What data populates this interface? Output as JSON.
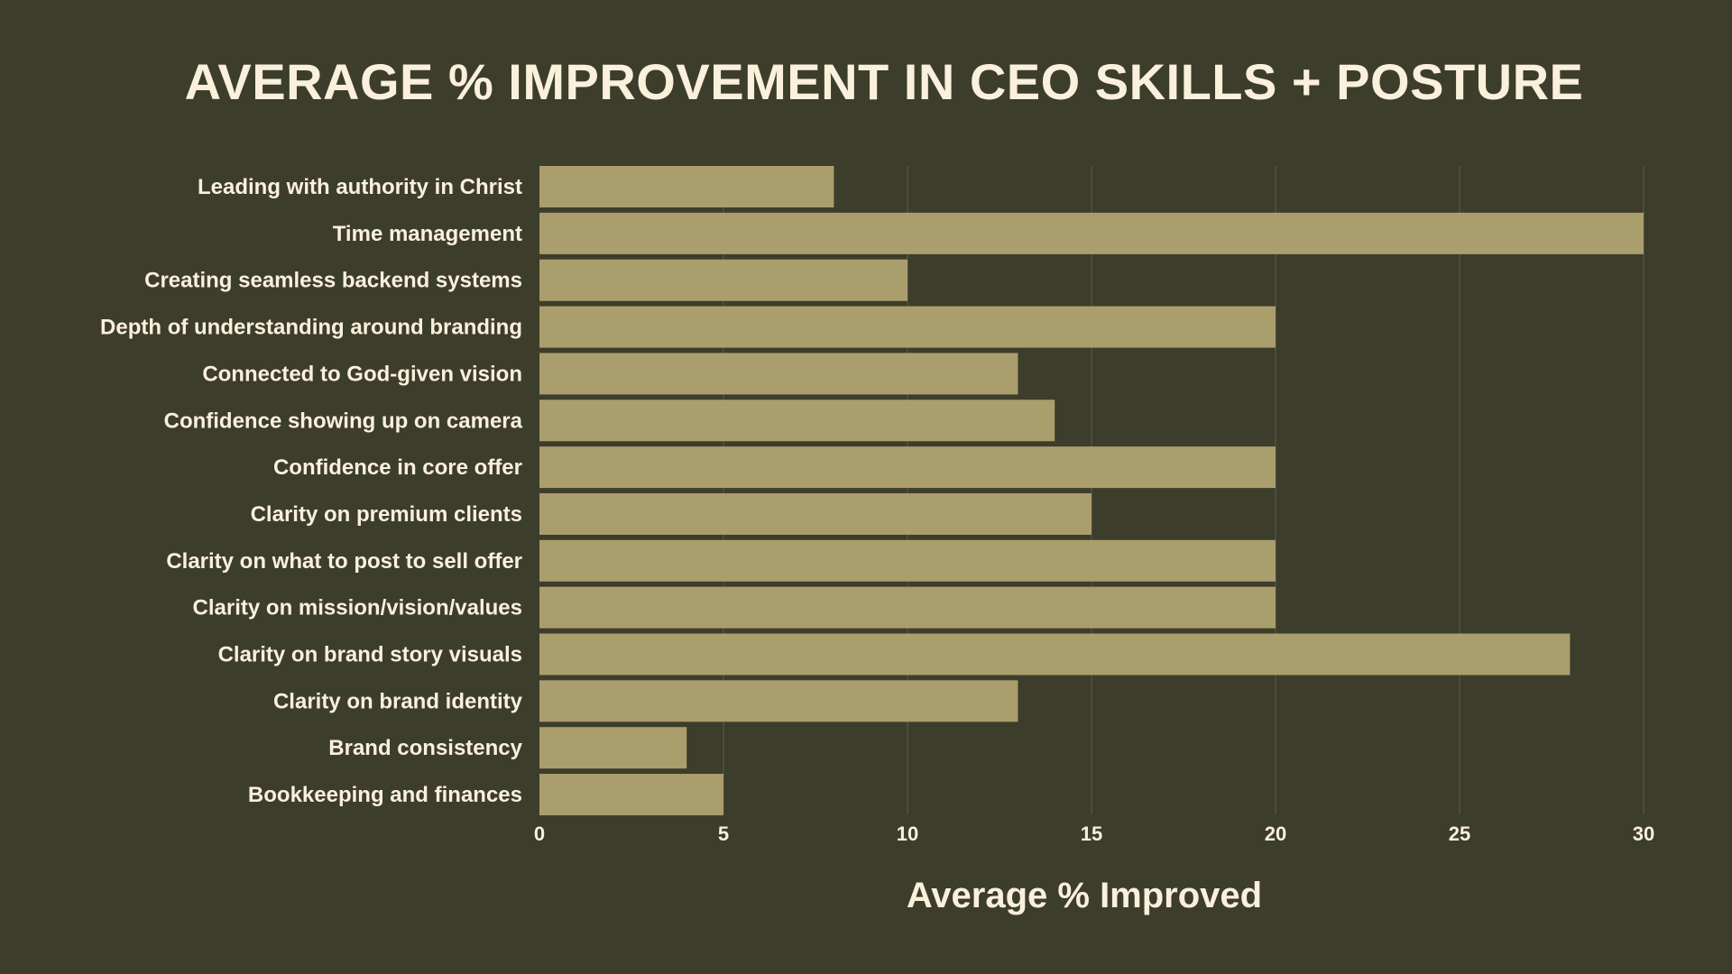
{
  "colors": {
    "background": "#3d3d2b",
    "bar": "#ab9e6d",
    "text": "#fbf0dc",
    "grid": "#52523f"
  },
  "chart_data": {
    "type": "bar",
    "orientation": "horizontal",
    "title": "AVERAGE % IMPROVEMENT IN CEO SKILLS + POSTURE",
    "xlabel": "Average % Improved",
    "ylabel": "",
    "xlim": [
      0,
      30
    ],
    "xticks": [
      0,
      5,
      10,
      15,
      20,
      25,
      30
    ],
    "grid": true,
    "categories": [
      "Leading with authority in Christ",
      "Time management",
      "Creating seamless backend systems",
      "Depth of understanding around branding",
      "Connected to God-given vision",
      "Confidence showing up on camera",
      "Confidence in core offer",
      "Clarity on premium clients",
      "Clarity on what to post to sell offer",
      "Clarity on mission/vision/values",
      "Clarity on brand story visuals",
      "Clarity on brand identity",
      "Brand consistency",
      "Bookkeeping and finances"
    ],
    "values": [
      8,
      30,
      10,
      20,
      13,
      14,
      20,
      15,
      20,
      20,
      28,
      13,
      4,
      5
    ]
  }
}
